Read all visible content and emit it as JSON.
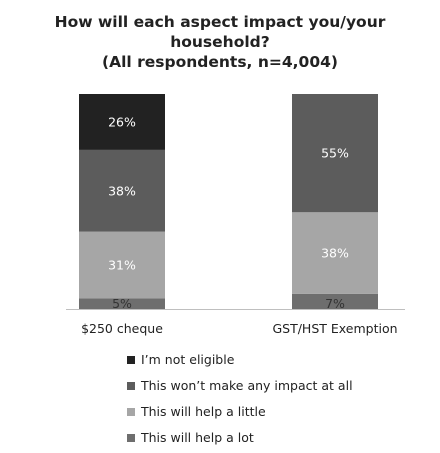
{
  "title": {
    "line1": "How will each aspect impact you/your",
    "line2": "household?",
    "line3": "(All respondents, n=4,004)"
  },
  "colors": {
    "not_eligible": "#222222",
    "no_impact": "#5c5c5c",
    "help_little": "#a6a6a6",
    "help_lot": "#6e6e6e",
    "axis": "#bfbfbf",
    "label_light": "#ffffff",
    "label_dark": "#333333"
  },
  "chart_data": {
    "type": "bar",
    "stacked": true,
    "title": "How will each aspect impact you/your household? (All respondents, n=4,004)",
    "categories": [
      "$250 cheque",
      "GST/HST Exemption"
    ],
    "series": [
      {
        "name": "This will help a lot",
        "key": "help_lot",
        "values": [
          5,
          7
        ]
      },
      {
        "name": "This will help a little",
        "key": "help_little",
        "values": [
          31,
          38
        ]
      },
      {
        "name": "This won’t make any impact at all",
        "key": "no_impact",
        "values": [
          38,
          55
        ]
      },
      {
        "name": "I’m not eligible",
        "key": "not_eligible",
        "values": [
          26,
          null
        ]
      }
    ],
    "legend_order": [
      "not_eligible",
      "no_impact",
      "help_little",
      "help_lot"
    ],
    "legend_position": "bottom",
    "grid": false
  }
}
